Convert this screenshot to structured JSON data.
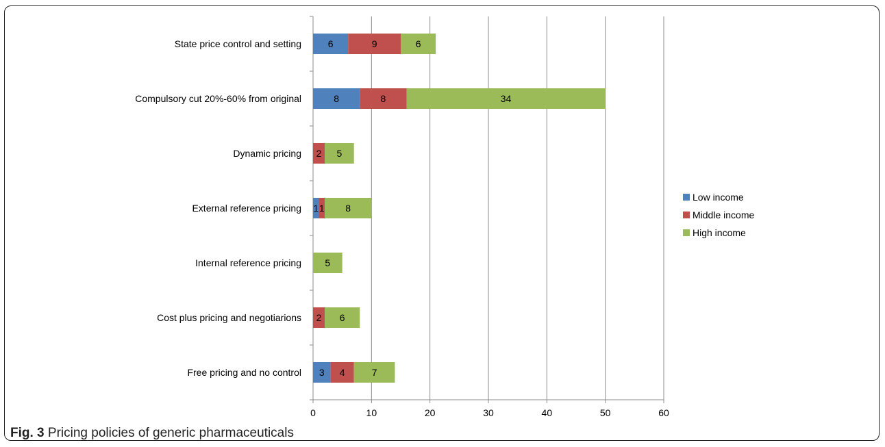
{
  "caption": {
    "label": "Fig. 3",
    "text": "Pricing policies of generic pharmaceuticals"
  },
  "chart_data": {
    "type": "bar",
    "orientation": "horizontal",
    "stacked": true,
    "categories": [
      "State price control and setting",
      "Compulsory cut 20%-60% from original",
      "Dynamic pricing",
      "External reference pricing",
      "Internal reference pricing",
      "Cost plus pricing and negotiarions",
      "Free pricing and no control"
    ],
    "series": [
      {
        "name": "Low income",
        "color": "#4F81BD",
        "values": [
          6,
          8,
          0,
          1,
          0,
          0,
          3
        ]
      },
      {
        "name": "Middle income",
        "color": "#C0504D",
        "values": [
          9,
          8,
          2,
          1,
          0,
          2,
          4
        ]
      },
      {
        "name": "High income",
        "color": "#9BBB59",
        "values": [
          6,
          34,
          5,
          8,
          5,
          6,
          7
        ]
      }
    ],
    "xlim": [
      0,
      60
    ],
    "xticks": [
      0,
      10,
      20,
      30,
      40,
      50,
      60
    ],
    "grid": "vertical",
    "legend_position": "right",
    "data_labels": true
  }
}
